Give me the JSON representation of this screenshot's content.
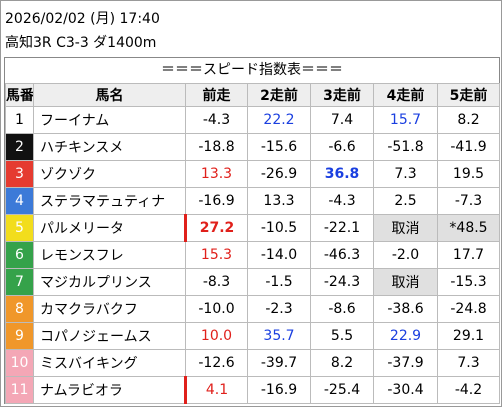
{
  "header": {
    "datetime": "2026/02/02 (月) 17:40",
    "race": "高知3R C3-3 ダ1400m"
  },
  "table": {
    "title": "＝＝＝スピード指数表＝＝＝",
    "columns": [
      "馬番",
      "馬名",
      "前走",
      "2走前",
      "3走前",
      "4走前",
      "5走前"
    ],
    "rows": [
      [
        "1",
        "フーイナム",
        "-4.3",
        "22.2",
        "7.4",
        "15.7",
        "8.2"
      ],
      [
        "2",
        "ハチキンスメ",
        "-18.8",
        "-15.6",
        "-6.6",
        "-51.8",
        "-41.9"
      ],
      [
        "3",
        "ゾクゾク",
        "13.3",
        "-26.9",
        "36.8",
        "7.3",
        "19.5"
      ],
      [
        "4",
        "ステラマテュティナ",
        "-16.9",
        "13.3",
        "-4.3",
        "2.5",
        "-7.3"
      ],
      [
        "5",
        "パルメリータ",
        "27.2",
        "-10.5",
        "-22.1",
        "取消",
        "*48.5"
      ],
      [
        "6",
        "レモンスフレ",
        "15.3",
        "-14.0",
        "-46.3",
        "-2.0",
        "17.7"
      ],
      [
        "7",
        "マジカルプリンス",
        "-8.3",
        "-1.5",
        "-24.3",
        "取消",
        "-15.3"
      ],
      [
        "8",
        "カマクラバクフ",
        "-10.0",
        "-2.3",
        "-8.6",
        "-38.6",
        "-24.8"
      ],
      [
        "9",
        "コパノジェームス",
        "10.0",
        "35.7",
        "5.5",
        "22.9",
        "29.1"
      ],
      [
        "10",
        "ミスバイキング",
        "-12.6",
        "-39.7",
        "8.2",
        "-37.9",
        "7.3"
      ],
      [
        "11",
        "ナムラビオラ",
        "4.1",
        "-16.9",
        "-25.4",
        "-30.4",
        "-4.2"
      ]
    ]
  }
}
